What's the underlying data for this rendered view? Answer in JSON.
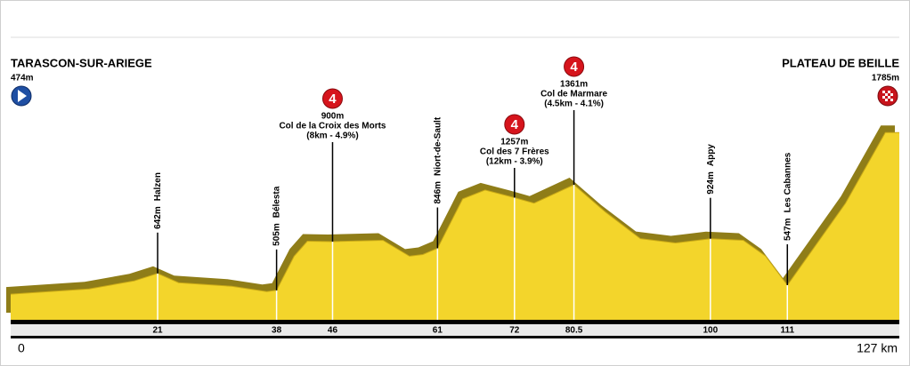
{
  "chart_data": {
    "type": "area",
    "xlim": [
      0,
      127
    ],
    "ylim": [
      266,
      2572
    ],
    "xticks": [
      0,
      21,
      38,
      46,
      61,
      72,
      80.5,
      100,
      111,
      {
        "value": 127,
        "label": "127 km"
      }
    ],
    "start": {
      "name": "TARASCON-SUR-ARIEGE",
      "altitude": {
        "value": 474,
        "label": "474m"
      }
    },
    "finish": {
      "name": "PLATEAU DE BEILLE",
      "altitude": {
        "value": 1785,
        "label": "1785m"
      }
    },
    "x": [
      0,
      11.2,
      17.6,
      21,
      24,
      31.6,
      36.6,
      38,
      40.5,
      42.4,
      46,
      53.2,
      57,
      58.9,
      61,
      64.6,
      67.8,
      72,
      74.8,
      80.5,
      85,
      90,
      95,
      100,
      104.7,
      107.9,
      111,
      119.3,
      125,
      127
    ],
    "values": [
      474,
      517,
      581,
      642,
      567,
      538,
      495,
      505,
      782,
      904,
      900,
      911,
      782,
      796,
      846,
      1247,
      1319,
      1257,
      1212,
      1361,
      1140,
      925,
      889,
      924,
      911,
      782,
      547,
      1211,
      1785,
      1785
    ],
    "waypoints": [
      {
        "name": "Halzen",
        "km": 21,
        "altitude": {
          "value": 642,
          "label": "642m"
        }
      },
      {
        "name": "Bélesta",
        "km": 38,
        "altitude": {
          "value": 505,
          "label": "505m"
        }
      },
      {
        "name": "Niort-de-Sault",
        "km": 61,
        "altitude": {
          "value": 846,
          "label": "846m"
        }
      },
      {
        "name": "Appy",
        "km": 100,
        "altitude": {
          "value": 924,
          "label": "924m"
        }
      },
      {
        "name": "Les Cabannes",
        "km": 111,
        "altitude": {
          "value": 547,
          "label": "547m"
        }
      }
    ],
    "climbs": [
      {
        "name": "Col de la Croix des Morts",
        "km": 46,
        "altitude": {
          "value": 900,
          "label": "900m"
        },
        "category": "4",
        "details": "(8km - 4.9%)"
      },
      {
        "name": "Col des 7 Frères",
        "km": 72,
        "altitude": {
          "value": 1257,
          "label": "1257m"
        },
        "category": "4",
        "details": "(12km - 3.9%)"
      },
      {
        "name": "Col de Marmare",
        "km": 80.5,
        "altitude": {
          "value": 1361,
          "label": "1361m"
        },
        "category": "4",
        "details": "(4.5km - 4.1%)"
      }
    ]
  }
}
